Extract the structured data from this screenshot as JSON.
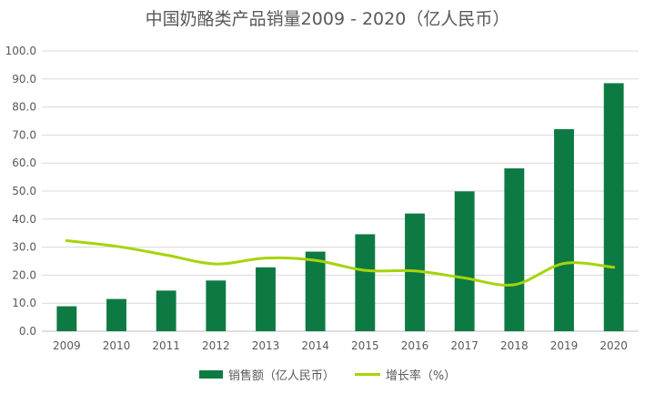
{
  "chart_data": {
    "type": "bar",
    "title": "中国奶酪类产品销量2009 - 2020（亿人民币）",
    "categories": [
      "2009",
      "2010",
      "2011",
      "2012",
      "2013",
      "2014",
      "2015",
      "2016",
      "2017",
      "2018",
      "2019",
      "2020"
    ],
    "series": [
      {
        "name": "销售额（亿人民币）",
        "type": "bar",
        "color": "#0e7a43",
        "values": [
          8.9,
          11.5,
          14.5,
          18.1,
          22.8,
          28.4,
          34.6,
          42.0,
          49.9,
          58.1,
          72.1,
          88.5
        ]
      },
      {
        "name": "增长率（%）",
        "type": "line",
        "color": "#a6d40a",
        "values": [
          32.3,
          30.3,
          27.2,
          24.0,
          26.1,
          25.3,
          21.7,
          21.5,
          19.0,
          16.6,
          24.2,
          22.8
        ]
      }
    ],
    "ylim": [
      0,
      100
    ],
    "yticks": [
      "0.0",
      "10.0",
      "20.0",
      "30.0",
      "40.0",
      "50.0",
      "60.0",
      "70.0",
      "80.0",
      "90.0",
      "100.0"
    ],
    "grid": true,
    "legend": "bottom"
  }
}
